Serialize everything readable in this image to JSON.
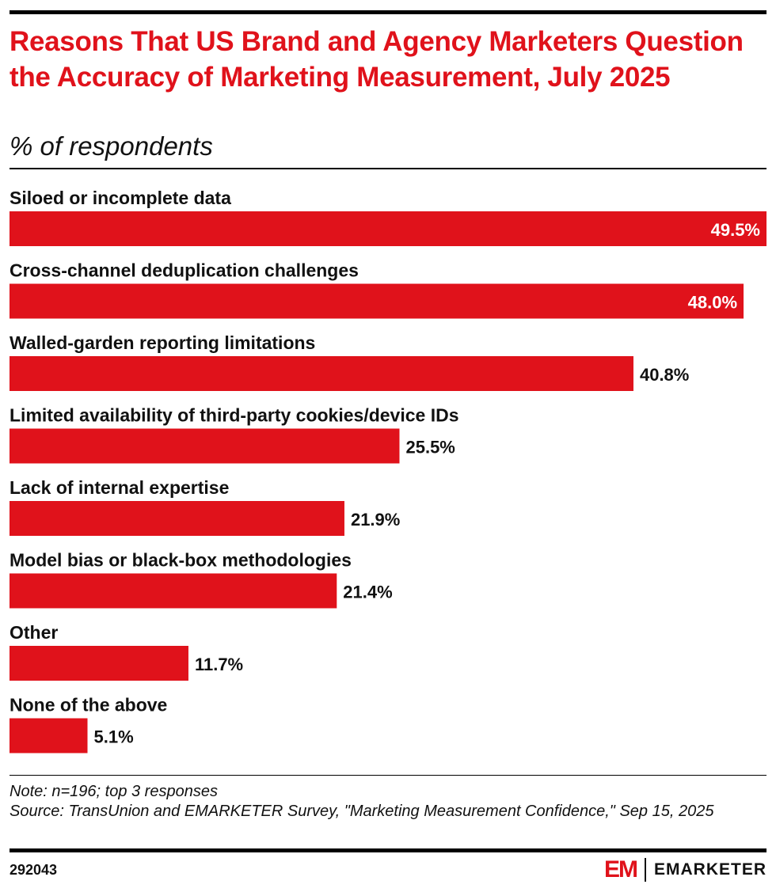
{
  "header": {
    "title": "Reasons That US Brand and Agency Marketers Question the Accuracy of Marketing Measurement, July 2025",
    "subtitle": "% of respondents"
  },
  "chart_data": {
    "type": "bar",
    "orientation": "horizontal",
    "categories": [
      "Siloed or incomplete data",
      "Cross-channel deduplication challenges",
      "Walled-garden reporting limitations",
      "Limited availability of third-party cookies/device IDs",
      "Lack of internal expertise",
      "Model bias or black-box methodologies",
      "Other",
      "None of the above"
    ],
    "values": [
      49.5,
      48.0,
      40.8,
      25.5,
      21.9,
      21.4,
      11.7,
      5.1
    ],
    "value_labels": [
      "49.5%",
      "48.0%",
      "40.8%",
      "25.5%",
      "21.9%",
      "21.4%",
      "11.7%",
      "5.1%"
    ],
    "bar_color": "#e0121b",
    "grid": false,
    "legend": "none"
  },
  "footer": {
    "note": "Note: n=196; top 3 responses",
    "source": "Source: TransUnion and EMARKETER Survey, \"Marketing Measurement Confidence,\" Sep 15, 2025",
    "chart_id": "292043",
    "logo_mark": "EM",
    "logo_text": "EMARKETER"
  },
  "colors": {
    "accent": "#e0121b",
    "text": "#000000"
  }
}
